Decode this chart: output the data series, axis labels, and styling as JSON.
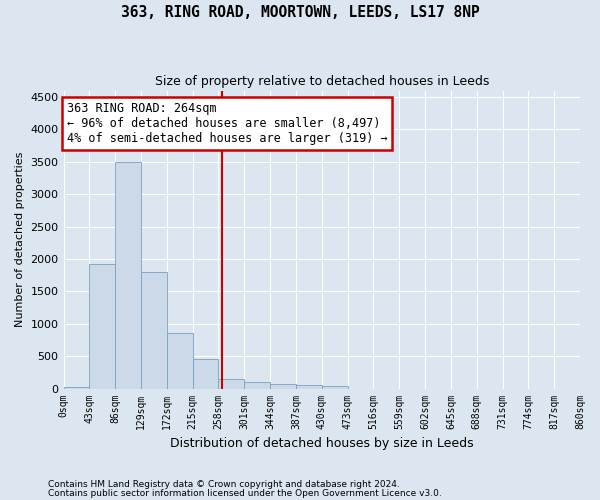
{
  "title": "363, RING ROAD, MOORTOWN, LEEDS, LS17 8NP",
  "subtitle": "Size of property relative to detached houses in Leeds",
  "xlabel": "Distribution of detached houses by size in Leeds",
  "ylabel": "Number of detached properties",
  "bar_color": "#ccd9e8",
  "bar_edge_color": "#7aa0be",
  "vline_color": "#cc0000",
  "vline_x": 264,
  "bin_edges": [
    0,
    43,
    86,
    129,
    172,
    215,
    258,
    301,
    344,
    387,
    430,
    473,
    516,
    559,
    602,
    645,
    688,
    731,
    774,
    817,
    860
  ],
  "bar_heights": [
    25,
    1920,
    3500,
    1800,
    850,
    450,
    150,
    95,
    65,
    55,
    40,
    0,
    0,
    0,
    0,
    0,
    0,
    0,
    0,
    0
  ],
  "annotation_line1": "363 RING ROAD: 264sqm",
  "annotation_line2": "← 96% of detached houses are smaller (8,497)",
  "annotation_line3": "4% of semi-detached houses are larger (319) →",
  "annotation_box_color": "#ffffff",
  "annotation_box_edge": "#cc0000",
  "ylim": [
    0,
    4600
  ],
  "yticks": [
    0,
    500,
    1000,
    1500,
    2000,
    2500,
    3000,
    3500,
    4000,
    4500
  ],
  "footer1": "Contains HM Land Registry data © Crown copyright and database right 2024.",
  "footer2": "Contains public sector information licensed under the Open Government Licence v3.0.",
  "background_color": "#dce6f0",
  "plot_bg_color": "#dce6f0",
  "grid_color": "#ffffff",
  "tick_labels": [
    "0sqm",
    "43sqm",
    "86sqm",
    "129sqm",
    "172sqm",
    "215sqm",
    "258sqm",
    "301sqm",
    "344sqm",
    "387sqm",
    "430sqm",
    "473sqm",
    "516sqm",
    "559sqm",
    "602sqm",
    "645sqm",
    "688sqm",
    "731sqm",
    "774sqm",
    "817sqm",
    "860sqm"
  ]
}
